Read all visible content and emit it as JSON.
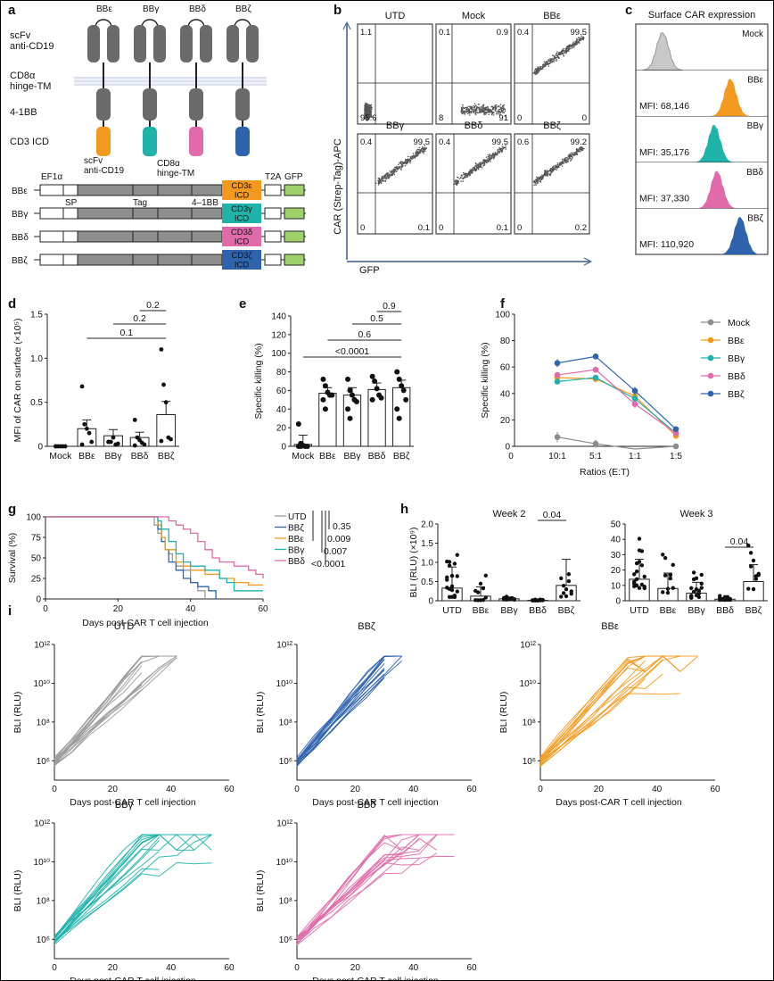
{
  "colors": {
    "mock": "#8c8c8c",
    "BBe": "#f39a1e",
    "BBg": "#1fb3aa",
    "BBd": "#e06aaa",
    "BBz": "#2f63ad",
    "UTD": "#9a9a9a",
    "gray_domain": "#7a7a7a",
    "hist_mock": "#c8c8c8"
  },
  "panel_letters": [
    "a",
    "b",
    "c",
    "d",
    "e",
    "f",
    "g",
    "h",
    "i"
  ],
  "panel_a": {
    "constructs": [
      "BBε",
      "BBγ",
      "BBδ",
      "BBζ"
    ],
    "domain_labels": [
      "scFv\nanti-CD19",
      "CD8α\nhinge-TM",
      "4-1BB",
      "CD3 ICD"
    ],
    "gene_header": [
      "EF1α",
      "scFv\nanti-CD19",
      "CD8α\nhinge-TM",
      "T2A",
      "GFP"
    ],
    "gene_sub": [
      "SP",
      "Tag",
      "4–1BB"
    ],
    "gene_rows": [
      {
        "name": "BBε",
        "icd": "CD3ε\nICD"
      },
      {
        "name": "BBγ",
        "icd": "CD3γ\nICD"
      },
      {
        "name": "BBδ",
        "icd": "CD3δ\nICD"
      },
      {
        "name": "BBζ",
        "icd": "CD3ζ\nICD"
      }
    ]
  },
  "panel_b": {
    "y_label": "CAR (Strep-Tag)-APC",
    "x_label": "GFP",
    "plots": [
      {
        "title": "UTD",
        "ul": "1.1",
        "ur": "",
        "ll": "95.6",
        "lr": ""
      },
      {
        "title": "Mock",
        "ul": "0.1",
        "ur": "0.9",
        "ll": "8",
        "lr": "91"
      },
      {
        "title": "BBε",
        "ul": "0.4",
        "ur": "99.5",
        "ll": "0",
        "lr": "0"
      },
      {
        "title": "BBγ",
        "ul": "0.4",
        "ur": "99.5",
        "ll": "0",
        "lr": "0.1"
      },
      {
        "title": "BBδ",
        "ul": "0.4",
        "ur": "99.5",
        "ll": "0",
        "lr": "0.1"
      },
      {
        "title": "BBζ",
        "ul": "0.6",
        "ur": "99.2",
        "ll": "0",
        "lr": "0.2"
      }
    ]
  },
  "panel_c": {
    "title": "Surface CAR expression",
    "rows": [
      {
        "label": "Mock",
        "mfi": ""
      },
      {
        "label": "BBε",
        "mfi": "MFI: 68,146"
      },
      {
        "label": "BBγ",
        "mfi": "MFI: 35,176"
      },
      {
        "label": "BBδ",
        "mfi": "MFI: 37,330"
      },
      {
        "label": "BBζ",
        "mfi": "MFI: 110,920"
      }
    ]
  },
  "chart_data": [
    {
      "panel": "d",
      "type": "bar",
      "categories": [
        "Mock",
        "BBε",
        "BBγ",
        "BBδ",
        "BBζ"
      ],
      "values": [
        0.0,
        0.2,
        0.12,
        0.1,
        0.36
      ],
      "errors": [
        0.01,
        0.1,
        0.07,
        0.06,
        0.15
      ],
      "points": [
        [
          0,
          0,
          0,
          0,
          0,
          0
        ],
        [
          0.68,
          0.25,
          0.2,
          0.15,
          0.05,
          0.02
        ],
        [
          0.05,
          0.05,
          0.1,
          0.02,
          0.03,
          0.05
        ],
        [
          0.3,
          0.1,
          0.07,
          0.04,
          0.02,
          0.01
        ],
        [
          1.1,
          0.7,
          0.5,
          0.1,
          0.08,
          0.06
        ]
      ],
      "ylabel": "MFI of CAR on surface (×10⁵)",
      "ylim": [
        0,
        1.5
      ],
      "yticks": [
        "0",
        "0.5",
        "1.0",
        "1.5"
      ],
      "comparisons": [
        {
          "from": 1,
          "to": 4,
          "label": "0.1"
        },
        {
          "from": 2,
          "to": 4,
          "label": "0.2"
        },
        {
          "from": 3,
          "to": 4,
          "label": "0.2"
        }
      ]
    },
    {
      "panel": "e",
      "type": "bar",
      "categories": [
        "Mock",
        "BBε",
        "BBγ",
        "BBδ",
        "BBζ"
      ],
      "values": [
        2,
        57,
        55,
        61,
        63
      ],
      "errors": [
        10,
        6,
        8,
        7,
        8
      ],
      "points": [
        [
          24,
          3,
          1,
          0,
          0,
          0,
          0
        ],
        [
          72,
          65,
          58,
          55,
          55,
          50,
          40
        ],
        [
          72,
          60,
          55,
          50,
          48,
          40,
          30
        ],
        [
          75,
          70,
          62,
          55,
          52,
          50
        ],
        [
          80,
          72,
          65,
          60,
          50,
          40,
          30
        ]
      ],
      "ylabel": "Specific killing (%)",
      "ylim": [
        0,
        140
      ],
      "yticks": [
        "0",
        "20",
        "40",
        "60",
        "80",
        "100",
        "120",
        "140"
      ],
      "comparisons": [
        {
          "from": 0,
          "to": 4,
          "label": "<0.0001"
        },
        {
          "from": 1,
          "to": 4,
          "label": "0.6"
        },
        {
          "from": 2,
          "to": 4,
          "label": "0.5"
        },
        {
          "from": 3,
          "to": 4,
          "label": "0.9"
        }
      ]
    },
    {
      "panel": "f",
      "type": "line",
      "x": [
        "10:1",
        "5:1",
        "1:1",
        "1:5"
      ],
      "xlabel": "Ratios (E:T)",
      "ylabel": "Specific killing (%)",
      "ylim": [
        0,
        100
      ],
      "yticks": [
        "0",
        "20",
        "40",
        "60",
        "80",
        "100"
      ],
      "series": [
        {
          "name": "Mock",
          "values": [
            7,
            2,
            -5,
            0
          ],
          "err": [
            4,
            3,
            0,
            0
          ],
          "color_key": "mock"
        },
        {
          "name": "BBε",
          "values": [
            52,
            51,
            38,
            8
          ],
          "err": [
            2,
            2,
            3,
            1
          ],
          "color_key": "BBe"
        },
        {
          "name": "BBγ",
          "values": [
            49,
            52,
            36,
            10
          ],
          "err": [
            2,
            2,
            3,
            1
          ],
          "color_key": "BBg"
        },
        {
          "name": "BBδ",
          "values": [
            54,
            58,
            32,
            10
          ],
          "err": [
            2,
            2,
            3,
            1
          ],
          "color_key": "BBd"
        },
        {
          "name": "BBζ",
          "values": [
            63,
            68,
            42,
            13
          ],
          "err": [
            3,
            1,
            3,
            1
          ],
          "color_key": "BBz"
        }
      ]
    },
    {
      "panel": "g",
      "type": "line",
      "xlabel": "Days post-CAR T cell injection",
      "ylabel": "Survival (%)",
      "xlim": [
        0,
        60
      ],
      "ylim": [
        0,
        100
      ],
      "xticks": [
        "0",
        "20",
        "40",
        "60"
      ],
      "yticks": [
        "0",
        "25",
        "50",
        "75",
        "100"
      ],
      "series": [
        {
          "name": "UTD",
          "color_key": "UTD",
          "x": [
            0,
            29,
            30,
            31,
            32,
            33,
            34,
            35,
            36,
            38,
            40,
            42,
            44
          ],
          "y": [
            100,
            100,
            90,
            80,
            70,
            60,
            55,
            45,
            40,
            35,
            20,
            10,
            0
          ]
        },
        {
          "name": "BBζ",
          "color_key": "BBz",
          "x": [
            0,
            29,
            31,
            32,
            33,
            34,
            36,
            38,
            40,
            42,
            45,
            47
          ],
          "y": [
            100,
            100,
            85,
            70,
            60,
            45,
            35,
            25,
            20,
            15,
            10,
            0
          ]
        },
        {
          "name": "BBε",
          "color_key": "BBe",
          "x": [
            0,
            30,
            31,
            32,
            33,
            36,
            38,
            40,
            44,
            48,
            52,
            56,
            60
          ],
          "y": [
            100,
            100,
            90,
            75,
            60,
            45,
            40,
            35,
            30,
            25,
            20,
            17,
            17
          ]
        },
        {
          "name": "BBγ",
          "color_key": "BBg",
          "x": [
            0,
            30,
            31,
            32,
            34,
            36,
            38,
            40,
            44,
            48,
            50,
            52,
            60
          ],
          "y": [
            100,
            100,
            95,
            85,
            70,
            55,
            45,
            40,
            35,
            25,
            20,
            10,
            10
          ]
        },
        {
          "name": "BBδ",
          "color_key": "BBd",
          "x": [
            0,
            33,
            34,
            36,
            38,
            40,
            42,
            44,
            46,
            48,
            52,
            56,
            58,
            60
          ],
          "y": [
            100,
            100,
            95,
            90,
            85,
            80,
            70,
            60,
            50,
            45,
            40,
            35,
            30,
            25
          ]
        }
      ],
      "legend_p": [
        "0.35",
        "0.009",
        "0.007",
        "<0.0001"
      ]
    },
    {
      "panel": "h-week2",
      "type": "bar",
      "title": "Week 2",
      "categories": [
        "UTD",
        "BBε",
        "BBγ",
        "BBδ",
        "BBζ"
      ],
      "values": [
        0.33,
        0.12,
        0.05,
        0.01,
        0.4
      ],
      "errors": [
        0.55,
        0.24,
        0.05,
        0.01,
        0.68
      ],
      "ylabel": "BLI (RLU) (×10⁹)",
      "ylim": [
        0,
        2.0
      ],
      "yticks": [
        "0",
        "0.5",
        "1.0",
        "1.5",
        "2.0"
      ],
      "comparisons": [
        {
          "from": 3,
          "to": 4,
          "label": "0.04"
        }
      ]
    },
    {
      "panel": "h-week3",
      "type": "bar",
      "title": "Week 3",
      "categories": [
        "UTD",
        "BBε",
        "BBγ",
        "BBδ",
        "BBζ"
      ],
      "values": [
        14,
        8,
        5,
        1,
        12.5
      ],
      "errors": [
        13,
        10,
        7,
        1,
        11
      ],
      "ylim": [
        0,
        50
      ],
      "yticks": [
        "0",
        "10",
        "20",
        "30",
        "40",
        "50"
      ],
      "comparisons": [
        {
          "from": 3,
          "to": 4,
          "label": "0.04"
        }
      ]
    },
    {
      "panel": "i",
      "type": "line",
      "titles": [
        "UTD",
        "BBζ",
        "BBε",
        "BBγ",
        "BBδ"
      ],
      "color_keys": [
        "UTD",
        "BBz",
        "BBe",
        "BBg",
        "BBd"
      ],
      "xlabel": "Days post-CAR T cell injection",
      "ylabel": "BLI (RLU)",
      "xlim": [
        0,
        60
      ],
      "ylim_log10": [
        5,
        12
      ],
      "xticks": [
        "0",
        "20",
        "40",
        "60"
      ],
      "yticks": [
        "10⁶",
        "10⁸",
        "10¹⁰",
        "10¹²"
      ]
    }
  ]
}
